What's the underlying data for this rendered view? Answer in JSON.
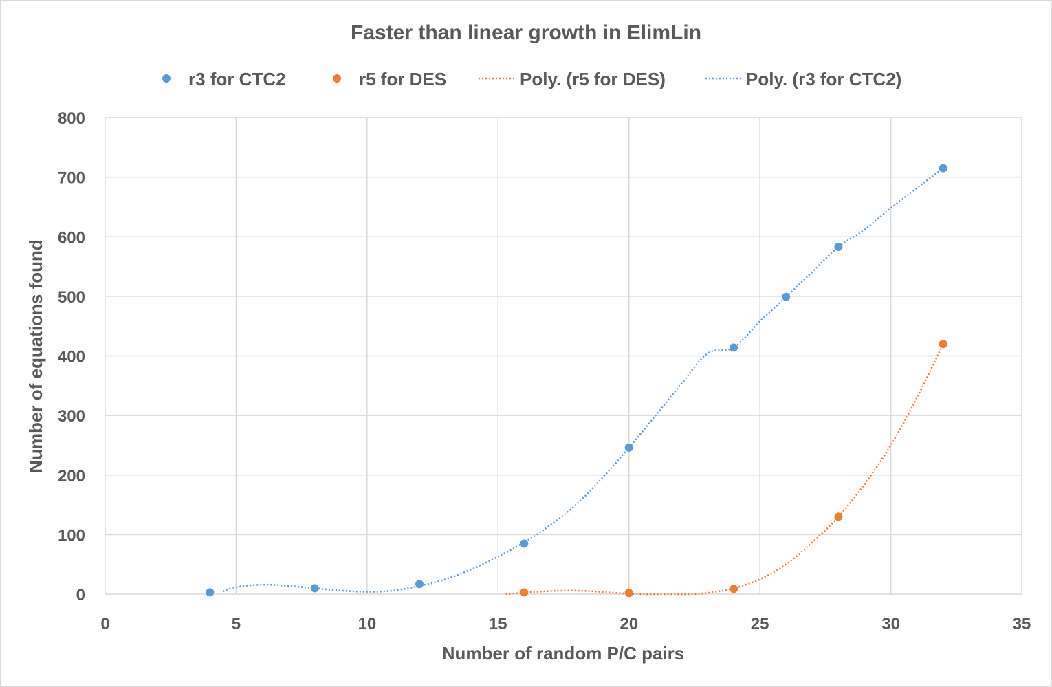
{
  "chart_data": {
    "type": "scatter",
    "title": "Faster than linear growth in ElimLin",
    "xlabel": "Number of random P/C pairs",
    "ylabel": "Number of equations found",
    "xlim": [
      0,
      35
    ],
    "ylim": [
      0,
      800
    ],
    "xticks": [
      "0",
      "5",
      "10",
      "15",
      "20",
      "25",
      "30",
      "35"
    ],
    "yticks": [
      "0",
      "100",
      "200",
      "300",
      "400",
      "500",
      "600",
      "700",
      "800"
    ],
    "xtick_values": [
      0,
      5,
      10,
      15,
      20,
      25,
      30,
      35
    ],
    "ytick_values": [
      0,
      100,
      200,
      300,
      400,
      500,
      600,
      700,
      800
    ],
    "grid": true,
    "legend_position": "top",
    "series": [
      {
        "name": "r3 for CTC2",
        "marker": "circle",
        "color": "#5b9bd5",
        "x": [
          4,
          8,
          12,
          16,
          20,
          24,
          26,
          28,
          32
        ],
        "y": [
          3,
          10,
          17,
          85,
          246,
          414,
          499,
          583,
          715
        ]
      },
      {
        "name": "r5 for DES",
        "marker": "circle",
        "color": "#ed7d31",
        "x": [
          16,
          20,
          24,
          28,
          32
        ],
        "y": [
          3,
          2,
          9,
          130,
          420
        ]
      }
    ],
    "trendlines": [
      {
        "name": "Poly.  (r5 for DES)",
        "style": "dotted",
        "color": "#ed7d31",
        "x": [
          15.3,
          16.5,
          17.5,
          18.5,
          19.5,
          20.5,
          21.5,
          22.3,
          23,
          24,
          25,
          26,
          27,
          28,
          29,
          30,
          31,
          32
        ],
        "y": [
          0,
          4,
          6,
          5,
          2,
          0,
          0,
          0,
          2,
          10,
          25,
          50,
          87,
          130,
          185,
          250,
          330,
          420
        ]
      },
      {
        "name": "Poly.  (r3 for CTC2)",
        "style": "dotted",
        "color": "#5b9bd5",
        "x": [
          4.5,
          5,
          6,
          7,
          8,
          9,
          10,
          11,
          12,
          13,
          14,
          15,
          16,
          17,
          18,
          19,
          20,
          21,
          22,
          23,
          24,
          25,
          26,
          27,
          28,
          29,
          30,
          31,
          32
        ],
        "y": [
          5,
          12,
          16,
          14,
          10,
          6,
          4,
          6,
          14,
          25,
          42,
          63,
          87,
          116,
          151,
          196,
          246,
          299,
          353,
          404,
          414,
          458,
          499,
          541,
          583,
          612,
          648,
          682,
          715
        ]
      }
    ]
  }
}
